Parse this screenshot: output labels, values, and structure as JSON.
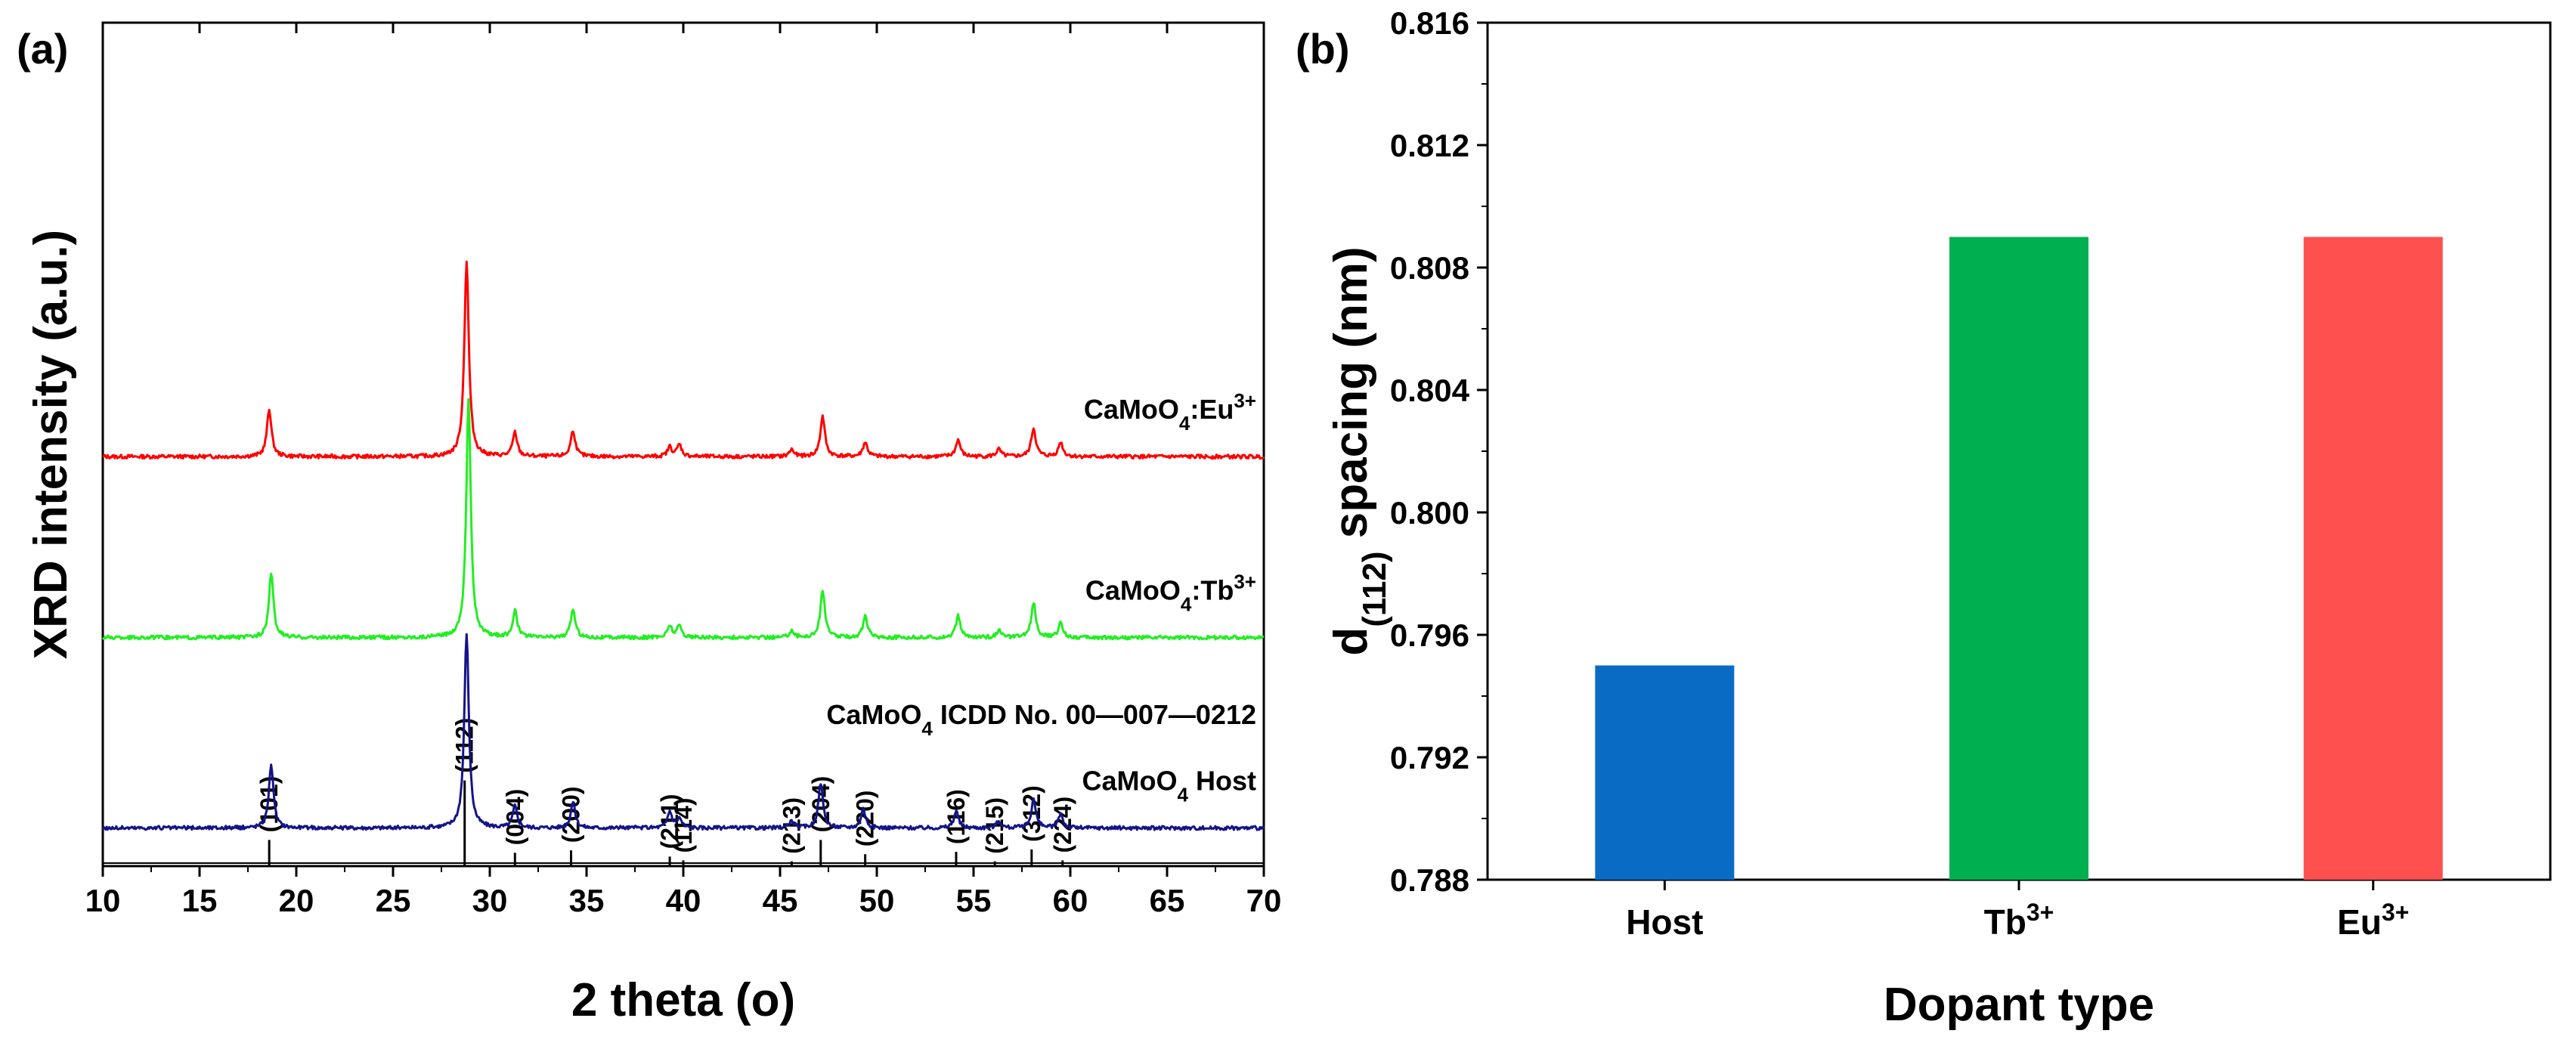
{
  "chart_data": [
    {
      "panel": "(a)",
      "type": "line",
      "title": "",
      "xlabel": "2 theta (o)",
      "ylabel": "XRD intensity (a.u.)",
      "xlim": [
        10,
        70
      ],
      "xticks": [
        10,
        15,
        20,
        25,
        30,
        35,
        40,
        45,
        50,
        55,
        60,
        65,
        70
      ],
      "grid": false,
      "series": [
        {
          "name": "CaMoO4:Eu3+",
          "label_main": "CaMoO",
          "label_sub": "4",
          "label_tail": ":Eu",
          "label_sup": "3+",
          "color": "#ff0000",
          "baseline": 8.6,
          "peaks": [
            [
              18.6,
              1.0
            ],
            [
              28.8,
              4.1
            ],
            [
              31.3,
              0.5
            ],
            [
              34.3,
              0.55
            ],
            [
              39.3,
              0.2
            ],
            [
              39.8,
              0.25
            ],
            [
              45.6,
              0.15
            ],
            [
              47.2,
              0.85
            ],
            [
              49.4,
              0.3
            ],
            [
              54.2,
              0.35
            ],
            [
              56.3,
              0.15
            ],
            [
              58.1,
              0.6
            ],
            [
              59.5,
              0.3
            ]
          ]
        },
        {
          "name": "CaMoO4:Tb3+",
          "label_main": "CaMoO",
          "label_sub": "4",
          "label_tail": ":Tb",
          "label_sup": "3+",
          "color": "#22ee22",
          "baseline": 4.8,
          "peaks": [
            [
              18.7,
              1.35
            ],
            [
              28.9,
              5.0
            ],
            [
              31.3,
              0.55
            ],
            [
              34.3,
              0.6
            ],
            [
              39.3,
              0.25
            ],
            [
              39.8,
              0.25
            ],
            [
              45.6,
              0.15
            ],
            [
              47.2,
              1.0
            ],
            [
              49.4,
              0.45
            ],
            [
              54.2,
              0.45
            ],
            [
              56.3,
              0.15
            ],
            [
              58.1,
              0.75
            ],
            [
              59.5,
              0.3
            ]
          ]
        },
        {
          "name": "CaMoO4 Host",
          "label_main": "CaMoO",
          "label_sub": "4",
          "label_tail": " Host",
          "label_sup": "",
          "color": "#141488",
          "baseline": 0.8,
          "peaks": [
            [
              18.7,
              1.35
            ],
            [
              28.8,
              4.1
            ],
            [
              31.3,
              0.45
            ],
            [
              34.3,
              0.55
            ],
            [
              39.3,
              0.35
            ],
            [
              39.8,
              0.2
            ],
            [
              45.6,
              0.15
            ],
            [
              47.1,
              0.95
            ],
            [
              49.3,
              0.4
            ],
            [
              54.1,
              0.35
            ],
            [
              56.3,
              0.15
            ],
            [
              58.1,
              0.6
            ],
            [
              59.5,
              0.3
            ]
          ]
        }
      ],
      "reference": {
        "label_main": "CaMoO",
        "label_sub": "4",
        "label_tail": " ICDD No. 00—007—0212",
        "lines": [
          {
            "two_theta": 18.6,
            "height": 0.55,
            "hkl": "(101)"
          },
          {
            "two_theta": 28.7,
            "height": 1.8,
            "hkl": "(112)"
          },
          {
            "two_theta": 31.3,
            "height": 0.28,
            "hkl": "(004)"
          },
          {
            "two_theta": 34.2,
            "height": 0.33,
            "hkl": "(200)"
          },
          {
            "two_theta": 39.3,
            "height": 0.2,
            "hkl": "(211)"
          },
          {
            "two_theta": 40.0,
            "height": 0.12,
            "hkl": "(114)"
          },
          {
            "two_theta": 45.6,
            "height": 0.1,
            "hkl": "(213)"
          },
          {
            "two_theta": 47.1,
            "height": 0.55,
            "hkl": "(204)"
          },
          {
            "two_theta": 49.4,
            "height": 0.25,
            "hkl": "(220)"
          },
          {
            "two_theta": 54.1,
            "height": 0.3,
            "hkl": "(116)"
          },
          {
            "two_theta": 56.1,
            "height": 0.1,
            "hkl": "(215)"
          },
          {
            "two_theta": 58.0,
            "height": 0.35,
            "hkl": "(312)"
          },
          {
            "two_theta": 59.6,
            "height": 0.12,
            "hkl": "(224)"
          }
        ]
      }
    },
    {
      "panel": "(b)",
      "type": "bar",
      "title": "",
      "xlabel": "Dopant type",
      "ylabel_main": "d",
      "ylabel_sub": "(112)",
      "ylabel_tail": " spacing (nm)",
      "ylim": [
        0.788,
        0.816
      ],
      "yticks": [
        "0.788",
        "0.792",
        "0.796",
        "0.800",
        "0.804",
        "0.808",
        "0.812",
        "0.816"
      ],
      "categories": [
        {
          "main": "Host",
          "sup": ""
        },
        {
          "main": "Tb",
          "sup": "3+"
        },
        {
          "main": "Eu",
          "sup": "3+"
        }
      ],
      "values": [
        0.795,
        0.809,
        0.809
      ],
      "colors": [
        "#0a6bc4",
        "#00b050",
        "#ff5050"
      ],
      "grid": false
    }
  ]
}
